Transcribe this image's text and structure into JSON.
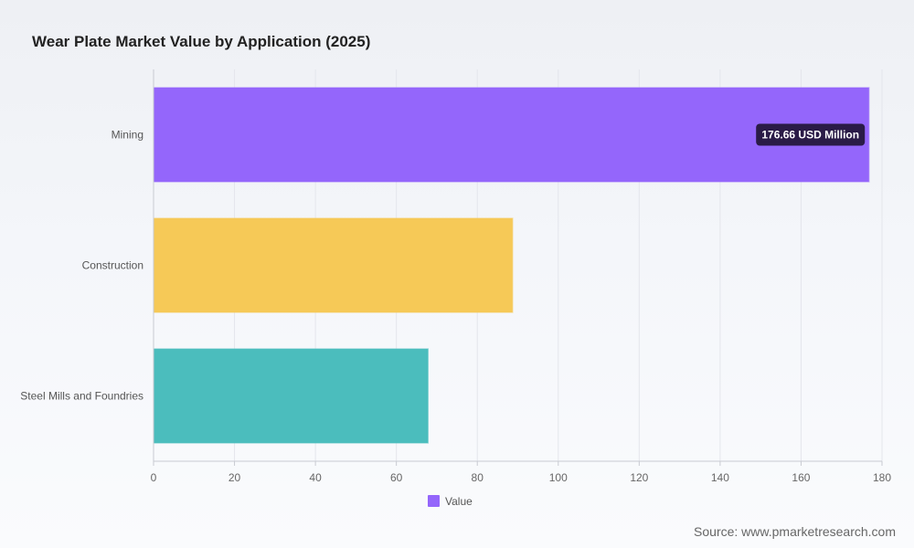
{
  "chart_data": {
    "type": "bar",
    "orientation": "horizontal",
    "title": "Wear Plate Market Value by Application (2025)",
    "categories": [
      "Mining",
      "Construction",
      "Steel Mills and Foundries"
    ],
    "series": [
      {
        "name": "Value",
        "values": [
          176.66,
          88.6,
          67.7
        ]
      }
    ],
    "colors": [
      "#9466fb",
      "#f6c957",
      "#4bbdbd"
    ],
    "legend_color": "#9466fb",
    "xlim": [
      0,
      180
    ],
    "xticks": [
      0,
      20,
      40,
      60,
      80,
      100,
      120,
      140,
      160,
      180
    ],
    "grid": true,
    "legend_position": "bottom",
    "annotation": {
      "category": "Mining",
      "text": "176.66 USD Million"
    }
  },
  "source": "Source: www.pmarketresearch.com"
}
